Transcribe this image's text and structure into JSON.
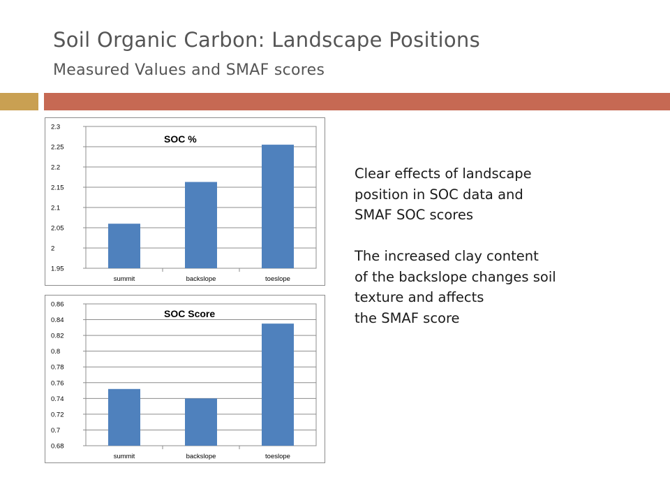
{
  "slide": {
    "title": "Soil Organic Carbon: Landscape Positions",
    "subtitle": "Measured Values and SMAF scores",
    "accent_colors": {
      "gold": "#C9A052",
      "rust": "#C66953"
    },
    "body_paragraphs": [
      "Clear effects of landscape\nposition in SOC data and\nSMAF SOC scores",
      "The increased clay content\nof the backslope changes soil\ntexture and affects\nthe SMAF score"
    ]
  },
  "chart_data": [
    {
      "type": "bar",
      "title": "SOC %",
      "categories": [
        "summit",
        "backslope",
        "toeslope"
      ],
      "values": [
        2.06,
        2.163,
        2.255
      ],
      "ylim": [
        1.95,
        2.3
      ],
      "yticks": [
        "1.95",
        "2",
        "2.05",
        "2.1",
        "2.15",
        "2.2",
        "2.25",
        "2.3"
      ],
      "grid": true,
      "bar_color": "#4F81BD",
      "xlabel": "",
      "ylabel": ""
    },
    {
      "type": "bar",
      "title": "SOC Score",
      "categories": [
        "summit",
        "backslope",
        "toeslope"
      ],
      "values": [
        0.752,
        0.74,
        0.835
      ],
      "ylim": [
        0.68,
        0.86
      ],
      "yticks": [
        "0.68",
        "0.7",
        "0.72",
        "0.74",
        "0.76",
        "0.78",
        "0.8",
        "0.82",
        "0.84",
        "0.86"
      ],
      "grid": true,
      "bar_color": "#4F81BD",
      "xlabel": "",
      "ylabel": ""
    }
  ]
}
